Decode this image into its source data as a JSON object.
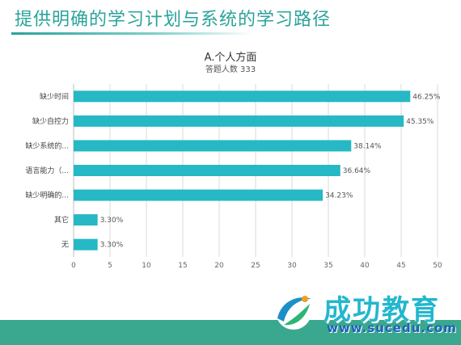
{
  "slide": {
    "title": "提供明确的学习计划与系统的学习路径"
  },
  "colors": {
    "accent": "#2aa39a",
    "bar": "#26b8c4",
    "footer": "#3aa88e",
    "logo_text": "#22b7cf",
    "logo_url": "#1c63b7"
  },
  "chart_data": {
    "type": "bar",
    "orientation": "horizontal",
    "title": "A.个人方面",
    "subtitle": "答题人数 333",
    "categories": [
      "缺少时间",
      "缺少自控力",
      "缺少系统的...",
      "语言能力（...",
      "缺少明确的...",
      "其它",
      "无"
    ],
    "values": [
      46.25,
      45.35,
      38.14,
      36.64,
      34.23,
      3.3,
      3.3
    ],
    "value_labels": [
      "46.25%",
      "45.35%",
      "38.14%",
      "36.64%",
      "34.23%",
      "3.30%",
      "3.30%"
    ],
    "xlim": [
      0,
      50
    ],
    "x_ticks": [
      0,
      5,
      10,
      15,
      20,
      25,
      30,
      35,
      40,
      45,
      50
    ],
    "grid": true,
    "legend": "none"
  },
  "logo": {
    "name": "成功教育",
    "url": "www.sucedu.com",
    "icon": "swoosh-globe-icon"
  }
}
